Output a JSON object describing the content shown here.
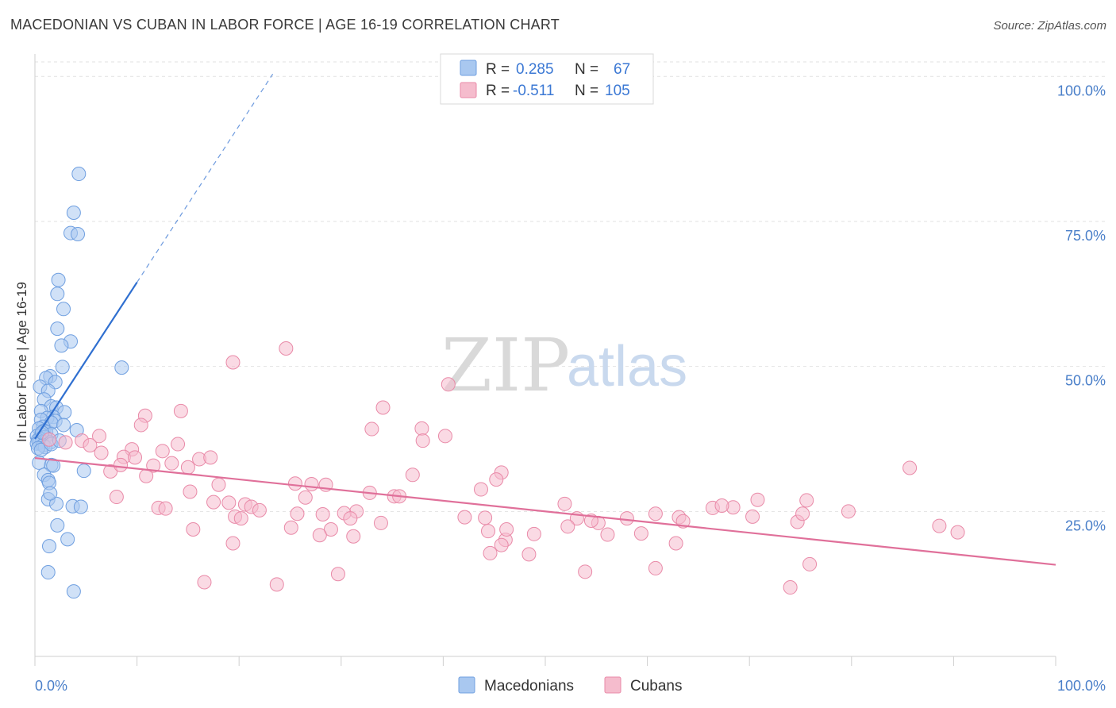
{
  "header": {
    "title": "MACEDONIAN VS CUBAN IN LABOR FORCE | AGE 16-19 CORRELATION CHART",
    "source": "Source: ZipAtlas.com"
  },
  "watermark": {
    "zip": "ZIP",
    "atlas": "atlas"
  },
  "colors": {
    "blue_fill": "#a9c8f0",
    "blue_stroke": "#6f9fe0",
    "blue_line": "#2f6fd0",
    "pink_fill": "#f5bccd",
    "pink_stroke": "#e98aa8",
    "pink_line": "#e0709a",
    "tick_text": "#4a7fc9",
    "grid": "#e2e2e2"
  },
  "legend": {
    "rows": [
      {
        "r_label": "R =",
        "r_value": "0.285",
        "n_label": "N =",
        "n_value": "67"
      },
      {
        "r_label": "R =",
        "r_value": "-0.511",
        "n_label": "N =",
        "n_value": "105"
      }
    ]
  },
  "chart_data": {
    "type": "scatter",
    "title": "MACEDONIAN VS CUBAN IN LABOR FORCE | AGE 16-19 CORRELATION CHART",
    "xlabel": "",
    "ylabel": "In Labor Force | Age 16-19",
    "xlim": [
      0,
      100
    ],
    "ylim": [
      0,
      102.5
    ],
    "x_tick_labels": [
      "0.0%",
      "100.0%"
    ],
    "y_ticks": [
      25,
      50,
      75,
      100
    ],
    "y_tick_labels": [
      "25.0%",
      "50.0%",
      "75.0%",
      "100.0%"
    ],
    "grid": true,
    "legend_position": "top-center",
    "series": [
      {
        "name": "Macedonians",
        "R": 0.285,
        "N": 67,
        "trend": {
          "x0": 0,
          "y0": 37.5,
          "x1": 10,
          "y1": 64.5,
          "dashed_to_x": 23.3
        },
        "points": [
          [
            4.3,
            83.2
          ],
          [
            3.8,
            76.5
          ],
          [
            3.5,
            73.0
          ],
          [
            4.2,
            72.8
          ],
          [
            2.3,
            64.9
          ],
          [
            2.2,
            62.5
          ],
          [
            2.8,
            59.9
          ],
          [
            2.2,
            56.5
          ],
          [
            3.5,
            54.3
          ],
          [
            2.6,
            53.6
          ],
          [
            8.5,
            49.8
          ],
          [
            2.7,
            49.9
          ],
          [
            1.5,
            48.3
          ],
          [
            1.1,
            48.0
          ],
          [
            2.0,
            47.3
          ],
          [
            0.5,
            46.5
          ],
          [
            1.3,
            45.8
          ],
          [
            0.9,
            44.3
          ],
          [
            1.6,
            43.1
          ],
          [
            0.6,
            42.3
          ],
          [
            2.1,
            42.9
          ],
          [
            2.9,
            42.1
          ],
          [
            1.8,
            41.3
          ],
          [
            1.2,
            41.1
          ],
          [
            2.0,
            40.6
          ],
          [
            0.6,
            40.8
          ],
          [
            1.6,
            40.3
          ],
          [
            0.8,
            39.6
          ],
          [
            0.4,
            39.3
          ],
          [
            2.8,
            39.9
          ],
          [
            0.9,
            38.9
          ],
          [
            1.1,
            38.7
          ],
          [
            4.1,
            39.0
          ],
          [
            0.6,
            38.3
          ],
          [
            0.2,
            38.0
          ],
          [
            1.6,
            38.3
          ],
          [
            1.0,
            37.8
          ],
          [
            0.5,
            37.5
          ],
          [
            0.3,
            37.3
          ],
          [
            0.7,
            37.0
          ],
          [
            0.4,
            36.8
          ],
          [
            1.5,
            36.9
          ],
          [
            0.2,
            36.7
          ],
          [
            0.8,
            36.4
          ],
          [
            1.0,
            36.1
          ],
          [
            0.3,
            35.9
          ],
          [
            0.6,
            35.6
          ],
          [
            1.6,
            36.6
          ],
          [
            0.4,
            33.4
          ],
          [
            1.6,
            33.0
          ],
          [
            1.8,
            32.9
          ],
          [
            4.8,
            32.0
          ],
          [
            0.9,
            31.3
          ],
          [
            1.3,
            30.4
          ],
          [
            1.4,
            29.9
          ],
          [
            1.3,
            27.1
          ],
          [
            2.1,
            26.3
          ],
          [
            3.7,
            25.9
          ],
          [
            4.5,
            25.8
          ],
          [
            2.2,
            22.6
          ],
          [
            3.2,
            20.2
          ],
          [
            1.4,
            19.0
          ],
          [
            1.3,
            14.5
          ],
          [
            3.8,
            11.2
          ],
          [
            1.5,
            28.1
          ],
          [
            0.7,
            38.6
          ],
          [
            2.4,
            37.2
          ]
        ]
      },
      {
        "name": "Cubans",
        "R": -0.511,
        "N": 105,
        "trend": {
          "x0": 0,
          "y0": 34.2,
          "x1": 100,
          "y1": 15.8
        },
        "points": [
          [
            24.6,
            53.1
          ],
          [
            19.4,
            50.7
          ],
          [
            40.5,
            46.9
          ],
          [
            34.1,
            42.9
          ],
          [
            10.8,
            41.5
          ],
          [
            14.3,
            42.3
          ],
          [
            33.0,
            39.2
          ],
          [
            37.9,
            39.3
          ],
          [
            10.4,
            39.9
          ],
          [
            6.3,
            38.0
          ],
          [
            38.0,
            37.2
          ],
          [
            1.4,
            37.4
          ],
          [
            3.0,
            36.9
          ],
          [
            4.6,
            37.2
          ],
          [
            5.4,
            36.4
          ],
          [
            9.5,
            35.7
          ],
          [
            12.5,
            35.4
          ],
          [
            14.0,
            36.6
          ],
          [
            6.5,
            35.1
          ],
          [
            8.7,
            34.4
          ],
          [
            9.8,
            34.3
          ],
          [
            16.1,
            34.0
          ],
          [
            17.2,
            34.3
          ],
          [
            11.6,
            32.9
          ],
          [
            13.4,
            33.3
          ],
          [
            15.0,
            32.6
          ],
          [
            7.4,
            31.9
          ],
          [
            8.4,
            33.0
          ],
          [
            37.0,
            31.3
          ],
          [
            45.7,
            31.7
          ],
          [
            45.2,
            30.5
          ],
          [
            10.9,
            31.1
          ],
          [
            25.5,
            29.8
          ],
          [
            27.1,
            29.7
          ],
          [
            28.5,
            29.6
          ],
          [
            18.0,
            29.6
          ],
          [
            43.7,
            28.8
          ],
          [
            32.8,
            28.2
          ],
          [
            35.2,
            27.6
          ],
          [
            35.7,
            27.6
          ],
          [
            15.2,
            28.4
          ],
          [
            26.5,
            27.4
          ],
          [
            8.0,
            27.5
          ],
          [
            17.5,
            26.6
          ],
          [
            19.0,
            26.5
          ],
          [
            20.6,
            26.2
          ],
          [
            21.2,
            25.8
          ],
          [
            12.1,
            25.6
          ],
          [
            12.8,
            25.5
          ],
          [
            22.0,
            25.2
          ],
          [
            31.5,
            25.0
          ],
          [
            25.7,
            24.6
          ],
          [
            28.2,
            24.5
          ],
          [
            30.3,
            24.7
          ],
          [
            19.6,
            24.1
          ],
          [
            20.2,
            23.8
          ],
          [
            42.1,
            24.0
          ],
          [
            44.1,
            23.9
          ],
          [
            33.9,
            23.0
          ],
          [
            51.9,
            26.3
          ],
          [
            53.1,
            23.8
          ],
          [
            58.0,
            23.8
          ],
          [
            55.2,
            23.0
          ],
          [
            60.8,
            24.6
          ],
          [
            63.1,
            24.0
          ],
          [
            66.4,
            25.6
          ],
          [
            63.5,
            23.3
          ],
          [
            68.4,
            25.7
          ],
          [
            70.8,
            27.0
          ],
          [
            67.3,
            26.0
          ],
          [
            75.6,
            26.9
          ],
          [
            70.3,
            24.1
          ],
          [
            74.7,
            23.2
          ],
          [
            75.2,
            24.6
          ],
          [
            79.7,
            25.0
          ],
          [
            85.7,
            32.5
          ],
          [
            88.6,
            22.5
          ],
          [
            90.4,
            21.4
          ],
          [
            15.5,
            21.9
          ],
          [
            29.0,
            21.9
          ],
          [
            27.9,
            20.9
          ],
          [
            31.2,
            20.7
          ],
          [
            19.4,
            19.5
          ],
          [
            44.4,
            21.6
          ],
          [
            46.1,
            20.1
          ],
          [
            46.2,
            21.9
          ],
          [
            48.9,
            21.1
          ],
          [
            52.2,
            22.4
          ],
          [
            56.1,
            21.0
          ],
          [
            59.4,
            21.2
          ],
          [
            45.7,
            19.2
          ],
          [
            48.4,
            17.6
          ],
          [
            62.8,
            19.5
          ],
          [
            44.6,
            17.8
          ],
          [
            53.9,
            14.6
          ],
          [
            60.8,
            15.2
          ],
          [
            75.9,
            15.9
          ],
          [
            16.6,
            12.8
          ],
          [
            23.7,
            12.4
          ],
          [
            29.7,
            14.2
          ],
          [
            74.0,
            11.9
          ],
          [
            54.5,
            23.4
          ],
          [
            30.9,
            23.8
          ],
          [
            25.1,
            22.2
          ],
          [
            40.2,
            38.0
          ]
        ]
      }
    ]
  },
  "bottom_legend": {
    "items": [
      "Macedonians",
      "Cubans"
    ]
  }
}
